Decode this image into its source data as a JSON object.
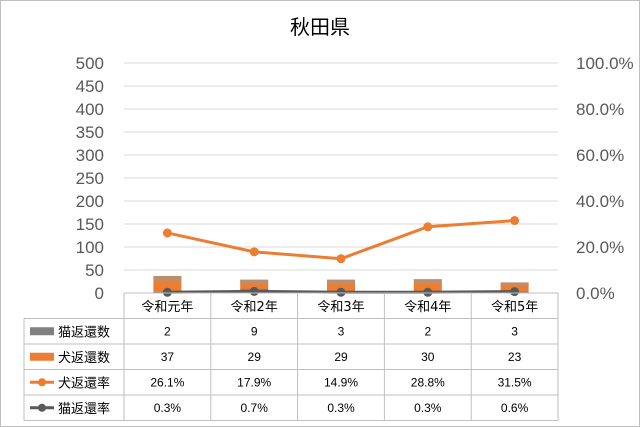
{
  "chart_data": {
    "type": "bar",
    "title": "秋田県",
    "categories": [
      "令和元年",
      "令和2年",
      "令和3年",
      "令和4年",
      "令和5年"
    ],
    "y_left": {
      "min": 0,
      "max": 500,
      "ticks": [
        "0",
        "50",
        "100",
        "150",
        "200",
        "250",
        "300",
        "350",
        "400",
        "450",
        "500"
      ]
    },
    "y_right": {
      "min": 0,
      "max": 100,
      "ticks": [
        "0.0%",
        "20.0%",
        "40.0%",
        "60.0%",
        "80.0%",
        "100.0%"
      ]
    },
    "grid": true,
    "legend": "data-table",
    "series": [
      {
        "name": "猫返還数",
        "kind": "bar",
        "axis": "left",
        "color": "#808080",
        "values": [
          2,
          9,
          3,
          2,
          3
        ],
        "labels": [
          "2",
          "9",
          "3",
          "2",
          "3"
        ]
      },
      {
        "name": "犬返還数",
        "kind": "bar",
        "axis": "left",
        "color": "#ed7d31",
        "values": [
          37,
          29,
          29,
          30,
          23
        ],
        "labels": [
          "37",
          "29",
          "29",
          "30",
          "23"
        ]
      },
      {
        "name": "犬返還率",
        "kind": "line",
        "axis": "right",
        "color": "#ed7d31",
        "values": [
          26.1,
          17.9,
          14.9,
          28.8,
          31.5
        ],
        "labels": [
          "26.1%",
          "17.9%",
          "14.9%",
          "28.8%",
          "31.5%"
        ]
      },
      {
        "name": "猫返還率",
        "kind": "line",
        "axis": "right",
        "color": "#595959",
        "values": [
          0.3,
          0.7,
          0.3,
          0.3,
          0.6
        ],
        "labels": [
          "0.3%",
          "0.7%",
          "0.3%",
          "0.3%",
          "0.6%"
        ]
      }
    ]
  }
}
